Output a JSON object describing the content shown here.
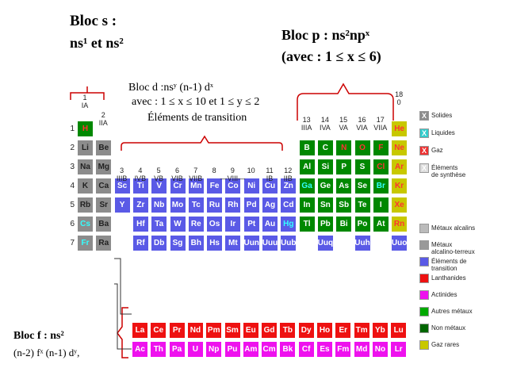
{
  "annotations": {
    "bloc_s_title": "Bloc s :",
    "bloc_s_formula": "ns¹ et ns²",
    "bloc_p_title": "Bloc p : ns²npˣ",
    "bloc_p_range": "(avec : 1 ≤ x ≤ 6)",
    "bloc_d_line1": "Bloc d :nsʸ  (n-1) dˣ",
    "bloc_d_line2": "avec : 1 ≤ x ≤ 10 et 1 ≤ y ≤ 2",
    "bloc_d_line3": "Éléments de transition",
    "bloc_f_line1": "Bloc f : ns²",
    "bloc_f_line2": "(n-2) fˣ (n-1) dʸ,"
  },
  "groups": {
    "g1": "1\nIA",
    "g2": "2\nIIA",
    "g3": "3\nIIIB",
    "g4": "4\nIVB",
    "g5": "5\nVB",
    "g6": "6\nVIB",
    "g7": "7\nVIIB",
    "g8": "8",
    "g9": "9\n—VIII—",
    "g10": "10",
    "g11": "11\nIB",
    "g12": "12\nIIB",
    "g13": "13\nIIIA",
    "g14": "14\nIVA",
    "g15": "15\nVA",
    "g16": "16\nVIA",
    "g17": "17\nVIIA",
    "g18": "18\n0"
  },
  "periods": [
    "1",
    "2",
    "3",
    "4",
    "5",
    "6",
    "7"
  ],
  "colors": {
    "alkali": "#8c8c8c",
    "alkaline_earth": "#8c8c8c",
    "transition": "#5a5ae6",
    "lanthanide": "#ee1111",
    "actinide": "#ee11ee",
    "other_metal": "#008800",
    "nonmetal": "#008800",
    "noble_gas": "#c8c800",
    "hydrogen": "#008800"
  },
  "legend_top": [
    {
      "symbol": "X",
      "label": "Solides",
      "color": "#8c8c8c"
    },
    {
      "symbol": "X",
      "label": "Liquides",
      "color": "#33cccc"
    },
    {
      "symbol": "X",
      "label": "Gaz",
      "color": "#ee3333"
    },
    {
      "symbol": "X",
      "label": "Éléments\nde synthèse",
      "color": "#dddddd"
    }
  ],
  "legend_bottom": [
    {
      "label": "Métaux alcalins",
      "color": "#bbbbbb"
    },
    {
      "label": "Métaux\nalcalino-terreux",
      "color": "#999999"
    },
    {
      "label": "Éléments de\ntransition",
      "color": "#5a5ae6"
    },
    {
      "label": "Lanthanides",
      "color": "#ee1111"
    },
    {
      "label": "Actinides",
      "color": "#ee11ee"
    },
    {
      "label": "Autres métaux",
      "color": "#00aa00"
    },
    {
      "label": "Non métaux",
      "color": "#006600"
    },
    {
      "label": "Gaz rares",
      "color": "#c8c800"
    }
  ],
  "elements": {
    "main": [
      [
        [
          "H",
          "hydrogen",
          "gas"
        ],
        null,
        null,
        null,
        null,
        null,
        null,
        null,
        null,
        null,
        null,
        null,
        null,
        null,
        null,
        null,
        null,
        [
          "He",
          "noble_gas",
          "gas"
        ]
      ],
      [
        [
          "Li",
          "alkali"
        ],
        [
          "Be",
          "alkaline_earth"
        ],
        null,
        null,
        null,
        null,
        null,
        null,
        null,
        null,
        null,
        null,
        [
          "B",
          "nonmetal"
        ],
        [
          "C",
          "nonmetal"
        ],
        [
          "N",
          "nonmetal",
          "gas"
        ],
        [
          "O",
          "nonmetal",
          "gas"
        ],
        [
          "F",
          "nonmetal",
          "gas"
        ],
        [
          "Ne",
          "noble_gas",
          "gas"
        ]
      ],
      [
        [
          "Na",
          "alkali"
        ],
        [
          "Mg",
          "alkaline_earth"
        ],
        null,
        null,
        null,
        null,
        null,
        null,
        null,
        null,
        null,
        null,
        [
          "Al",
          "other_metal"
        ],
        [
          "Si",
          "nonmetal"
        ],
        [
          "P",
          "nonmetal"
        ],
        [
          "S",
          "nonmetal"
        ],
        [
          "Cl",
          "nonmetal",
          "gas"
        ],
        [
          "Ar",
          "noble_gas",
          "gas"
        ]
      ],
      [
        [
          "K",
          "alkali"
        ],
        [
          "Ca",
          "alkaline_earth"
        ],
        [
          "Sc",
          "transition"
        ],
        [
          "Ti",
          "transition"
        ],
        [
          "V",
          "transition"
        ],
        [
          "Cr",
          "transition"
        ],
        [
          "Mn",
          "transition"
        ],
        [
          "Fe",
          "transition"
        ],
        [
          "Co",
          "transition"
        ],
        [
          "Ni",
          "transition"
        ],
        [
          "Cu",
          "transition"
        ],
        [
          "Zn",
          "transition"
        ],
        [
          "Ga",
          "other_metal",
          "liquid"
        ],
        [
          "Ge",
          "other_metal"
        ],
        [
          "As",
          "nonmetal"
        ],
        [
          "Se",
          "nonmetal"
        ],
        [
          "Br",
          "nonmetal",
          "liquid"
        ],
        [
          "Kr",
          "noble_gas",
          "gas"
        ]
      ],
      [
        [
          "Rb",
          "alkali"
        ],
        [
          "Sr",
          "alkaline_earth"
        ],
        [
          "Y",
          "transition"
        ],
        [
          "Zr",
          "transition"
        ],
        [
          "Nb",
          "transition"
        ],
        [
          "Mo",
          "transition"
        ],
        [
          "Tc",
          "transition",
          "synth"
        ],
        [
          "Ru",
          "transition"
        ],
        [
          "Rh",
          "transition"
        ],
        [
          "Pd",
          "transition"
        ],
        [
          "Ag",
          "transition"
        ],
        [
          "Cd",
          "transition"
        ],
        [
          "In",
          "other_metal"
        ],
        [
          "Sn",
          "other_metal"
        ],
        [
          "Sb",
          "other_metal"
        ],
        [
          "Te",
          "nonmetal"
        ],
        [
          "I",
          "nonmetal"
        ],
        [
          "Xe",
          "noble_gas",
          "gas"
        ]
      ],
      [
        [
          "Cs",
          "alkali",
          "liquid"
        ],
        [
          "Ba",
          "alkaline_earth"
        ],
        null,
        [
          "Hf",
          "transition"
        ],
        [
          "Ta",
          "transition"
        ],
        [
          "W",
          "transition"
        ],
        [
          "Re",
          "transition"
        ],
        [
          "Os",
          "transition"
        ],
        [
          "Ir",
          "transition"
        ],
        [
          "Pt",
          "transition"
        ],
        [
          "Au",
          "transition"
        ],
        [
          "Hg",
          "transition",
          "liquid"
        ],
        [
          "Tl",
          "other_metal"
        ],
        [
          "Pb",
          "other_metal"
        ],
        [
          "Bi",
          "other_metal"
        ],
        [
          "Po",
          "other_metal"
        ],
        [
          "At",
          "nonmetal"
        ],
        [
          "Rn",
          "noble_gas",
          "gas"
        ]
      ],
      [
        [
          "Fr",
          "alkali",
          "liquid"
        ],
        [
          "Ra",
          "alkaline_earth"
        ],
        null,
        [
          "Rf",
          "transition",
          "synth"
        ],
        [
          "Db",
          "transition",
          "synth"
        ],
        [
          "Sg",
          "transition",
          "synth"
        ],
        [
          "Bh",
          "transition",
          "synth"
        ],
        [
          "Hs",
          "transition",
          "synth"
        ],
        [
          "Mt",
          "transition",
          "synth"
        ],
        [
          "Uun",
          "transition",
          "synth"
        ],
        [
          "Uuu",
          "transition",
          "synth"
        ],
        [
          "Uub",
          "transition",
          "synth"
        ],
        null,
        [
          "Uuq",
          "transition",
          "synth"
        ],
        null,
        [
          "Uuh",
          "transition",
          "synth"
        ],
        null,
        [
          "Uuo",
          "transition",
          "synth"
        ]
      ]
    ],
    "lanthanides": [
      "La",
      "Ce",
      "Pr",
      "Nd",
      "Pm",
      "Sm",
      "Eu",
      "Gd",
      "Tb",
      "Dy",
      "Ho",
      "Er",
      "Tm",
      "Yb",
      "Lu"
    ],
    "actinides": [
      "Ac",
      "Th",
      "Pa",
      "U",
      "Np",
      "Pu",
      "Am",
      "Cm",
      "Bk",
      "Cf",
      "Es",
      "Fm",
      "Md",
      "No",
      "Lr"
    ]
  }
}
